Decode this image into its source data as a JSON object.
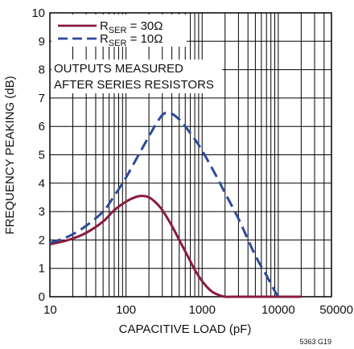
{
  "chart_data": {
    "type": "line",
    "x_scale": "log",
    "xlabel": "CAPACITIVE LOAD (pF)",
    "ylabel": "FREQUENCY PEAKING (dB)",
    "xlim": [
      10,
      50000
    ],
    "ylim": [
      0,
      10
    ],
    "x_ticks": [
      10,
      100,
      1000,
      10000,
      50000
    ],
    "x_tick_labels": [
      "10",
      "100",
      "1000",
      "10000",
      "50000"
    ],
    "y_ticks": [
      0,
      1,
      2,
      3,
      4,
      5,
      6,
      7,
      8,
      9,
      10
    ],
    "grid": true,
    "legend_position": "top-left",
    "annotation": [
      "OUTPUTS MEASURED",
      "AFTER SERIES RESISTORS"
    ],
    "figure_id": "5363 G19",
    "colors": {
      "r30": "#8b1a3c",
      "r10": "#2c4a9a",
      "grid": "#000000"
    },
    "series": [
      {
        "name_main": "R",
        "name_sub": "SER",
        "name_rest": " = 30Ω",
        "line_style": "solid",
        "color": "#8b1a3c",
        "x": [
          10,
          15,
          20,
          30,
          50,
          70,
          100,
          130,
          160,
          200,
          250,
          300,
          400,
          500,
          600,
          700,
          800,
          1000,
          1200,
          1400,
          1700,
          2000,
          2500,
          3000,
          5000,
          10000,
          20000
        ],
        "y": [
          1.85,
          1.95,
          2.05,
          2.25,
          2.65,
          3.05,
          3.35,
          3.5,
          3.55,
          3.5,
          3.3,
          3.05,
          2.5,
          2.0,
          1.6,
          1.25,
          0.95,
          0.55,
          0.3,
          0.15,
          0.05,
          0.0,
          0.0,
          0.0,
          0.0,
          0.0,
          0.0
        ]
      },
      {
        "name_main": "R",
        "name_sub": "SER",
        "name_rest": " = 10Ω",
        "line_style": "dashed",
        "color": "#2c4a9a",
        "x": [
          10,
          15,
          20,
          30,
          50,
          70,
          100,
          150,
          200,
          250,
          300,
          350,
          400,
          500,
          600,
          800,
          1000,
          1500,
          2000,
          3000,
          5000,
          7000,
          9000,
          10000
        ],
        "y": [
          1.9,
          2.05,
          2.2,
          2.5,
          3.0,
          3.55,
          4.2,
          5.05,
          5.65,
          6.1,
          6.4,
          6.5,
          6.45,
          6.25,
          6.0,
          5.55,
          5.15,
          4.3,
          3.65,
          2.75,
          1.45,
          0.75,
          0.2,
          0.0
        ]
      }
    ]
  }
}
